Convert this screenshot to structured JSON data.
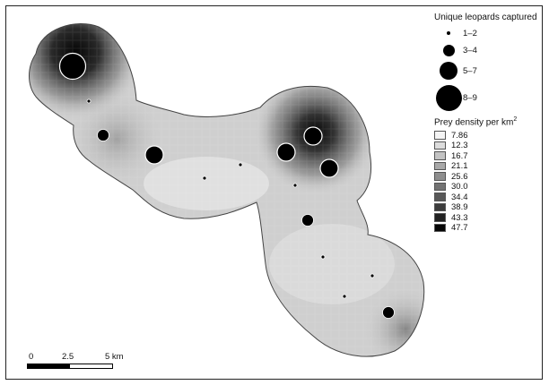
{
  "legend": {
    "capture_title": "Unique leopards captured",
    "capture_classes": [
      {
        "label": "1–2",
        "size": 1
      },
      {
        "label": "3–4",
        "size": 2
      },
      {
        "label": "5–7",
        "size": 3
      },
      {
        "label": "8–9",
        "size": 4
      }
    ],
    "density_title": "Prey density per km",
    "density_title_sup": "2",
    "density_classes": [
      {
        "label": "7.86",
        "color": "#f4f4f4"
      },
      {
        "label": "12.3",
        "color": "#dcdcdc"
      },
      {
        "label": "16.7",
        "color": "#c3c3c3"
      },
      {
        "label": "21.1",
        "color": "#a8a8a8"
      },
      {
        "label": "25.6",
        "color": "#8e8e8e"
      },
      {
        "label": "30.0",
        "color": "#737373"
      },
      {
        "label": "34.4",
        "color": "#585858"
      },
      {
        "label": "38.9",
        "color": "#3c3c3c"
      },
      {
        "label": "43.3",
        "color": "#212121"
      },
      {
        "label": "47.7",
        "color": "#050505"
      }
    ]
  },
  "scalebar": {
    "labels": [
      "0",
      "2.5",
      "5 km"
    ]
  },
  "colors": {
    "border": "#444444",
    "symbol_fill": "#000000",
    "symbol_stroke": "#ffffff"
  }
}
